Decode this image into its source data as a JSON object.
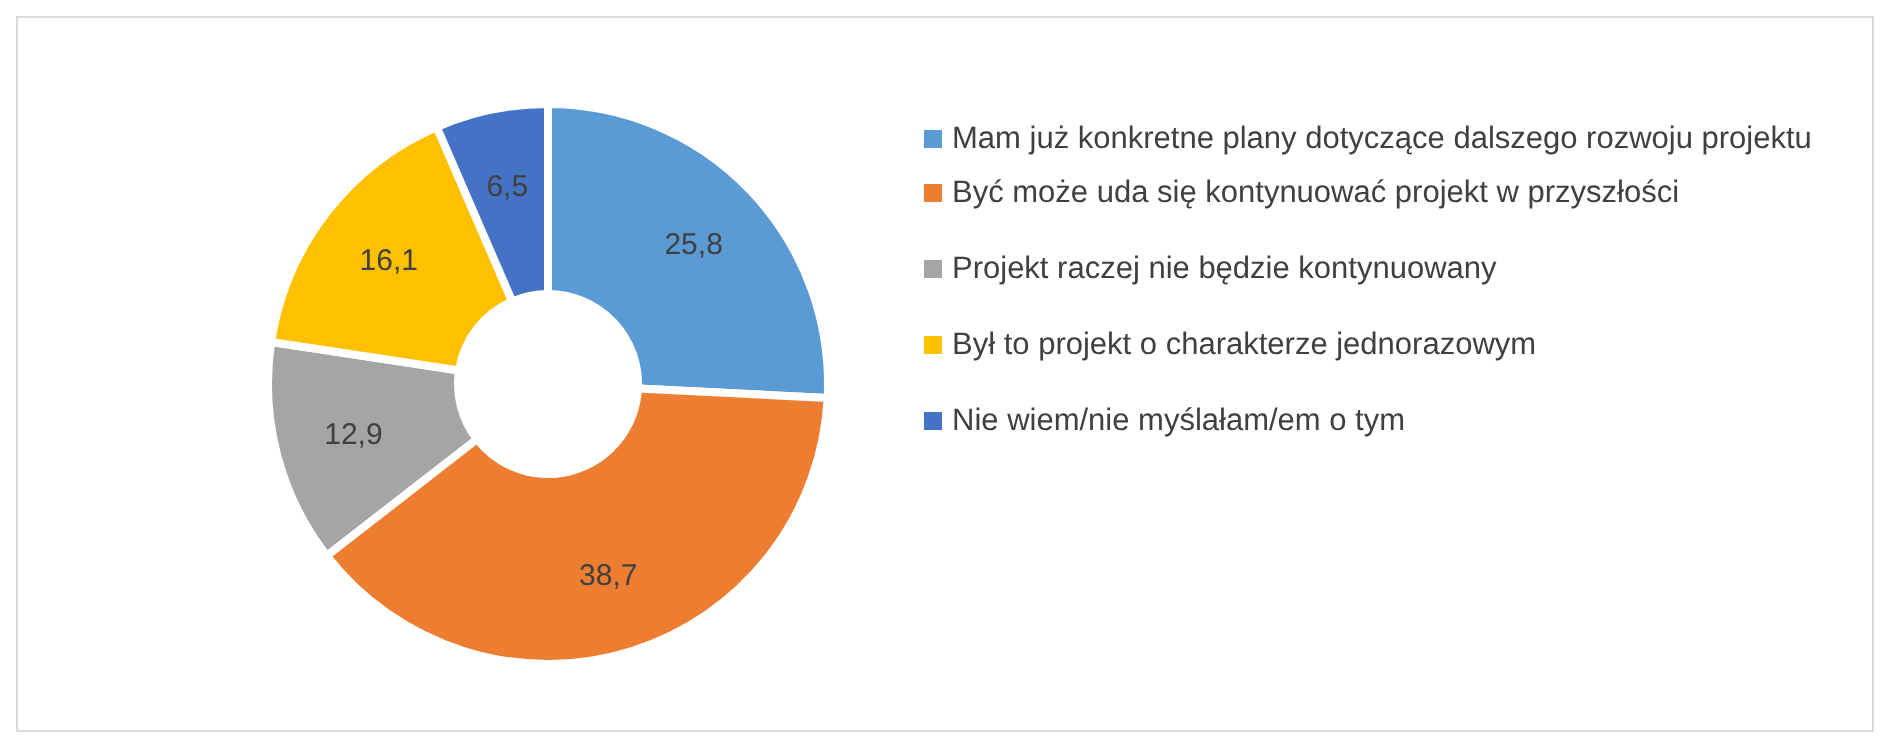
{
  "chart_data": {
    "type": "donut",
    "categories": [
      "Mam już konkretne plany dotyczące dalszego rozwoju projektu",
      "Być może uda się kontynuować projekt w przyszłości",
      "Projekt raczej nie będzie kontynuowany",
      "Był to projekt o charakterze jednorazowym",
      "Nie wiem/nie myślałam/em o tym"
    ],
    "values": [
      25.8,
      38.7,
      12.9,
      16.1,
      6.5
    ],
    "value_labels": [
      "25,8",
      "38,7",
      "12,9",
      "16,1",
      "6,5"
    ],
    "colors": [
      "#5b9bd5",
      "#ed7d31",
      "#a5a5a5",
      "#ffc000",
      "#4472c4"
    ],
    "legend": "right"
  }
}
